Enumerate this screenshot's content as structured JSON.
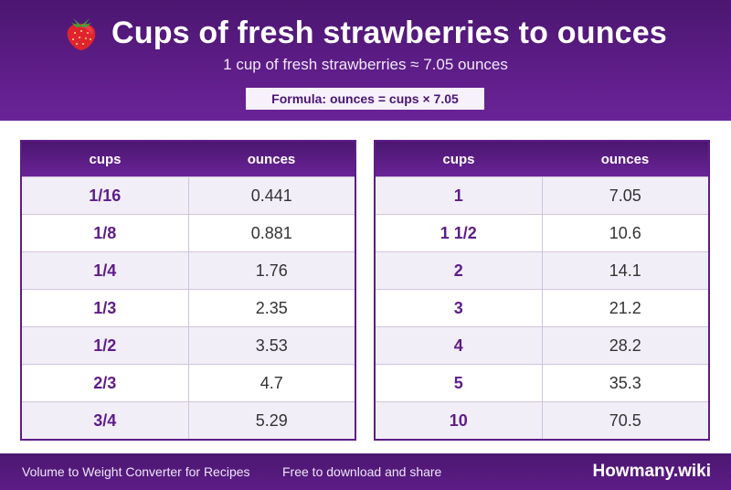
{
  "header": {
    "title": "Cups of fresh strawberries to ounces",
    "subtitle": "1 cup of fresh strawberries ≈ 7.05 ounces",
    "formula": "Formula: ounces = cups × 7.05",
    "icon": "strawberry-icon"
  },
  "table_left": {
    "col_cups": "cups",
    "col_ounces": "ounces",
    "rows": [
      {
        "cups": "1/16",
        "ounces": "0.441"
      },
      {
        "cups": "1/8",
        "ounces": "0.881"
      },
      {
        "cups": "1/4",
        "ounces": "1.76"
      },
      {
        "cups": "1/3",
        "ounces": "2.35"
      },
      {
        "cups": "1/2",
        "ounces": "3.53"
      },
      {
        "cups": "2/3",
        "ounces": "4.7"
      },
      {
        "cups": "3/4",
        "ounces": "5.29"
      }
    ]
  },
  "table_right": {
    "col_cups": "cups",
    "col_ounces": "ounces",
    "rows": [
      {
        "cups": "1",
        "ounces": "7.05"
      },
      {
        "cups": "1 1/2",
        "ounces": "10.6"
      },
      {
        "cups": "2",
        "ounces": "14.1"
      },
      {
        "cups": "3",
        "ounces": "21.2"
      },
      {
        "cups": "4",
        "ounces": "28.2"
      },
      {
        "cups": "5",
        "ounces": "35.3"
      },
      {
        "cups": "10",
        "ounces": "70.5"
      }
    ]
  },
  "footer": {
    "left_text": "Volume to Weight Converter for Recipes",
    "middle_text": "Free to download and share",
    "brand": "Howmany.wiki"
  },
  "colors": {
    "brand_purple": "#5d1d87",
    "dark_purple": "#4b1670",
    "stripe": "#f2eef8"
  }
}
